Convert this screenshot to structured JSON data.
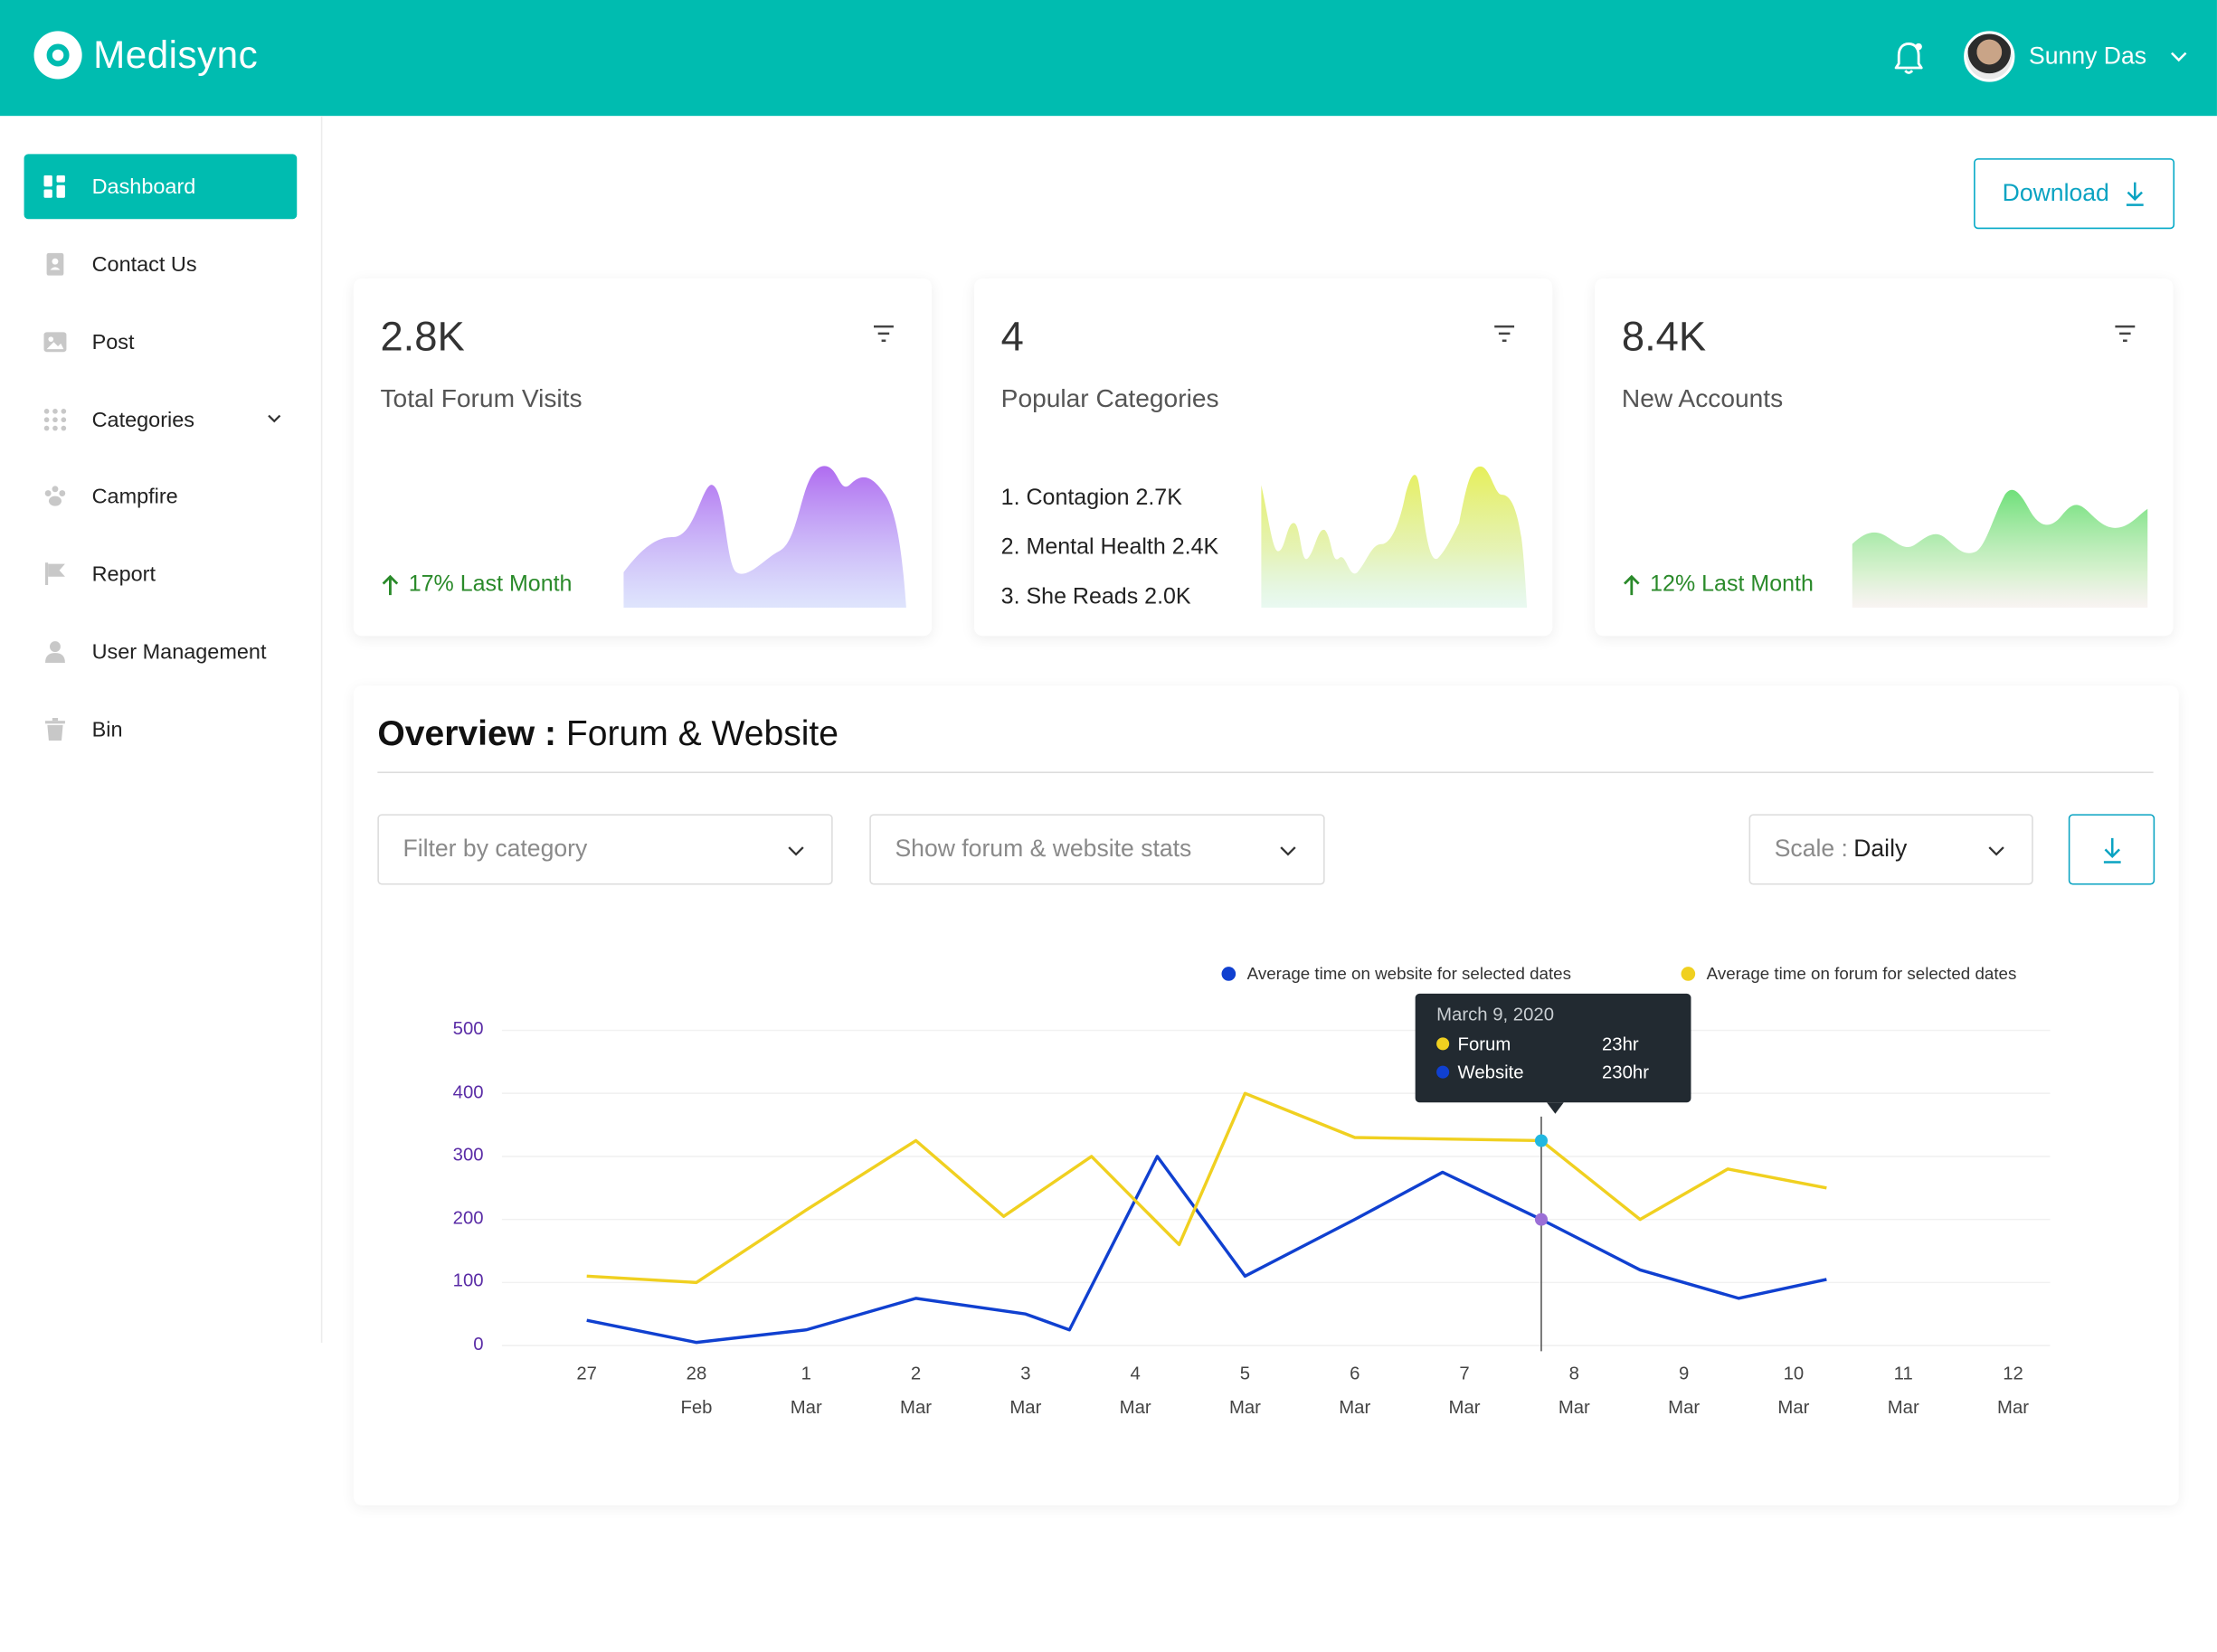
{
  "app": {
    "name": "Medisync",
    "accent": "#00bcb0"
  },
  "header": {
    "user_name": "Sunny Das",
    "notification_icon": "bell-icon"
  },
  "sidebar": {
    "items": [
      {
        "label": "Dashboard",
        "icon": "dashboard-icon",
        "active": true
      },
      {
        "label": "Contact Us",
        "icon": "contact-book-icon"
      },
      {
        "label": "Post",
        "icon": "image-icon"
      },
      {
        "label": "Categories",
        "icon": "grid-dots-icon",
        "expandable": true
      },
      {
        "label": "Campfire",
        "icon": "paw-icon"
      },
      {
        "label": "Report",
        "icon": "flag-icon"
      },
      {
        "label": "User Management",
        "icon": "user-icon"
      },
      {
        "label": "Bin",
        "icon": "trash-icon"
      }
    ]
  },
  "toolbar": {
    "download_label": "Download"
  },
  "cards": [
    {
      "value": "2.8K",
      "label": "Total Forum Visits",
      "trend": "17% Last Month"
    },
    {
      "value": "4",
      "label": "Popular Categories",
      "list": [
        "1. Contagion 2.7K",
        "2. Mental Health 2.4K",
        "3. She Reads 2.0K"
      ]
    },
    {
      "value": "8.4K",
      "label": "New Accounts",
      "trend": "12% Last Month"
    }
  ],
  "overview": {
    "title_bold": "Overview :",
    "title_rest": "Forum & Website",
    "filter_placeholder": "Filter by category",
    "stats_placeholder": "Show forum & website stats",
    "scale_label": "Scale :",
    "scale_value": "Daily"
  },
  "chart_data": {
    "type": "line",
    "y_ticks": [
      "500",
      "400",
      "300",
      "200",
      "100",
      "0"
    ],
    "ylim": [
      0,
      500
    ],
    "x_labels": [
      {
        "day": "27",
        "month": ""
      },
      {
        "day": "28",
        "month": "Feb"
      },
      {
        "day": "1",
        "month": "Mar"
      },
      {
        "day": "2",
        "month": "Mar"
      },
      {
        "day": "3",
        "month": "Mar"
      },
      {
        "day": "4",
        "month": "Mar"
      },
      {
        "day": "5",
        "month": "Mar"
      },
      {
        "day": "6",
        "month": "Mar"
      },
      {
        "day": "7",
        "month": "Mar"
      },
      {
        "day": "8",
        "month": "Mar"
      },
      {
        "day": "9",
        "month": "Mar"
      },
      {
        "day": "10",
        "month": "Mar"
      },
      {
        "day": "11",
        "month": "Mar"
      },
      {
        "day": "12",
        "month": "Mar"
      }
    ],
    "series": [
      {
        "name": "Average time on website for selected dates",
        "color": "#1040d0",
        "points": [
          [
            0,
            40
          ],
          [
            1,
            5
          ],
          [
            2,
            25
          ],
          [
            3,
            75
          ],
          [
            4,
            50
          ],
          [
            4.4,
            25
          ],
          [
            5.2,
            300
          ],
          [
            6,
            110
          ],
          [
            7,
            200
          ],
          [
            7.8,
            275
          ],
          [
            8.7,
            200
          ],
          [
            9.6,
            120
          ],
          [
            10.5,
            75
          ],
          [
            11.3,
            105
          ]
        ]
      },
      {
        "name": "Average time on forum for selected dates",
        "color": "#f0d020",
        "points": [
          [
            0,
            110
          ],
          [
            1,
            100
          ],
          [
            2,
            215
          ],
          [
            3,
            325
          ],
          [
            3.8,
            205
          ],
          [
            4.6,
            300
          ],
          [
            5.4,
            160
          ],
          [
            6,
            400
          ],
          [
            7,
            330
          ],
          [
            8.7,
            325
          ],
          [
            9.6,
            200
          ],
          [
            10.4,
            280
          ],
          [
            11.3,
            250
          ]
        ]
      }
    ],
    "tooltip": {
      "date": "March 9, 2020",
      "rows": [
        {
          "label": "Forum",
          "value": "23hr"
        },
        {
          "label": "Website",
          "value": "230hr"
        }
      ]
    }
  }
}
